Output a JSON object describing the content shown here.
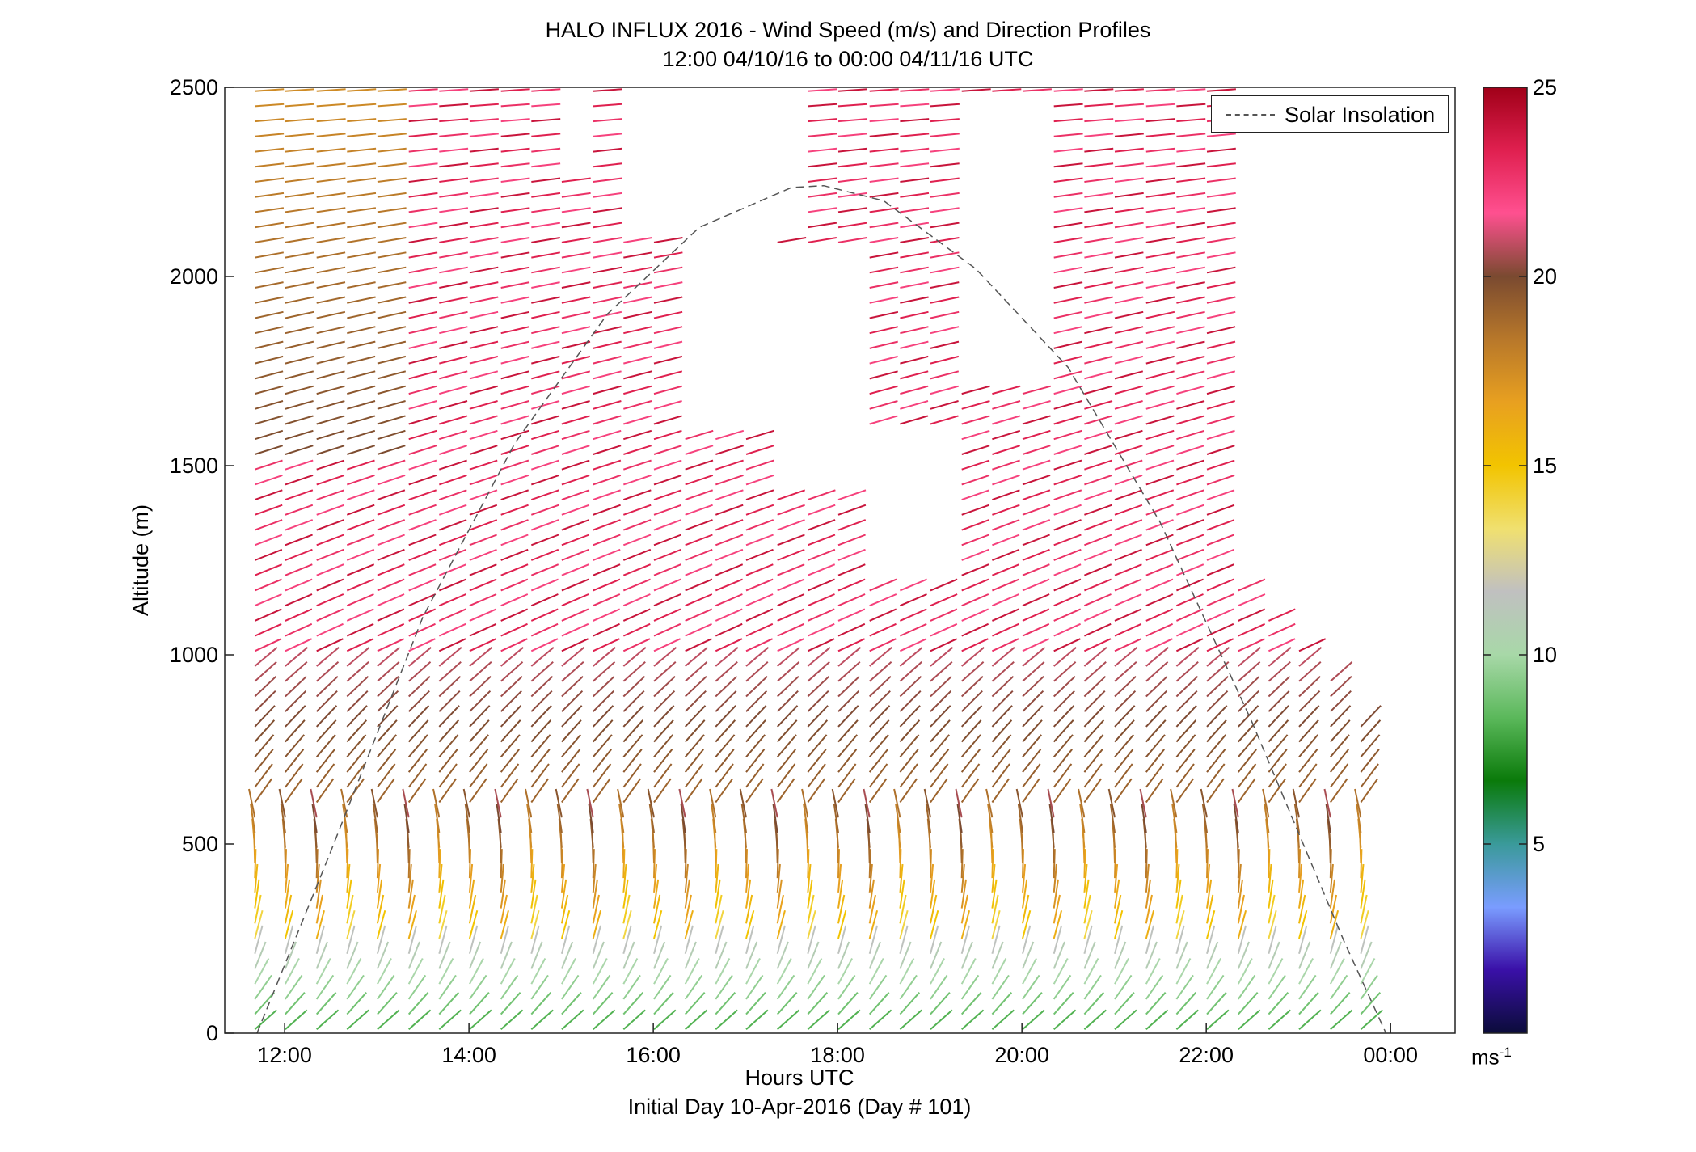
{
  "title": {
    "line1": "HALO INFLUX 2016 - Wind Speed (m/s) and Direction Profiles",
    "line2": "12:00 04/10/16 to 00:00 04/11/16  UTC"
  },
  "axes": {
    "xlabel": "Hours UTC",
    "xlabel_sub": "Initial Day 10-Apr-2016 (Day # 101)",
    "ylabel": "Altitude (m)"
  },
  "legend": {
    "label": "Solar Insolation"
  },
  "colorbar": {
    "unit_base": "ms",
    "unit_exp": "-1",
    "ticks": [
      "5",
      "10",
      "15",
      "20",
      "25"
    ],
    "range": [
      0,
      25
    ],
    "colors": [
      "#0b0c3a",
      "#3a10a8",
      "#7a9cff",
      "#3a9a9a",
      "#0a7a0a",
      "#5ab85a",
      "#a8d8a8",
      "#c0c0c0",
      "#f0e070",
      "#f2c400",
      "#e8a020",
      "#b8782a",
      "#7a4a30",
      "#ff5090",
      "#e02050",
      "#a00018"
    ]
  },
  "chart_data": {
    "type": "wind-barb profile",
    "title": "HALO INFLUX 2016 - Wind Speed (m/s) and Direction Profiles",
    "subtitle": "12:00 04/10/16 to 00:00 04/11/16  UTC",
    "xlabel": "Hours UTC",
    "ylabel": "Altitude (m)",
    "x_ticks": [
      "12:00",
      "14:00",
      "16:00",
      "18:00",
      "20:00",
      "22:00",
      "00:00"
    ],
    "x_tick_hours": [
      12,
      14,
      16,
      18,
      20,
      22,
      24
    ],
    "xlim": [
      11.35,
      24.7
    ],
    "y_ticks": [
      0,
      500,
      1000,
      1500,
      2000,
      2500
    ],
    "ylim": [
      0,
      2500
    ],
    "legend": [
      "Solar Insolation"
    ],
    "legend_position": "top-right",
    "colorbar_range": [
      0,
      25
    ],
    "profile_hours": [
      11.8,
      12.13,
      12.47,
      12.8,
      13.13,
      13.47,
      13.8,
      14.13,
      14.47,
      14.8,
      15.13,
      15.47,
      15.8,
      16.13,
      16.47,
      16.8,
      17.13,
      17.47,
      17.8,
      18.13,
      18.47,
      18.8,
      19.13,
      19.47,
      19.8,
      20.13,
      20.47,
      20.8,
      21.13,
      21.47,
      21.8,
      22.13,
      22.47,
      22.8,
      23.13,
      23.47,
      23.8
    ],
    "regimes": [
      {
        "altitude_range_m": [
          0,
          250
        ],
        "speed_ms": 9,
        "direction": "westerly, rising to north-west"
      },
      {
        "altitude_range_m": [
          250,
          600
        ],
        "speed_ms": 16,
        "direction": "northerly to north-westerly"
      },
      {
        "altitude_range_m": [
          600,
          1000
        ],
        "speed_ms": 20,
        "direction": "south-westerly"
      },
      {
        "altitude_range_m": [
          1000,
          2500
        ],
        "speed_ms": 23,
        "direction": "south-westerly to westerly"
      }
    ],
    "solar_insolation": {
      "hours": [
        11.7,
        12.5,
        13.5,
        14.5,
        15.5,
        16.5,
        17.5,
        17.85,
        18.5,
        19.5,
        20.5,
        21.5,
        22.5,
        23.5,
        23.95
      ],
      "altitude_m": [
        0,
        480,
        1100,
        1560,
        1900,
        2130,
        2235,
        2240,
        2200,
        2020,
        1760,
        1350,
        820,
        240,
        0
      ]
    }
  }
}
